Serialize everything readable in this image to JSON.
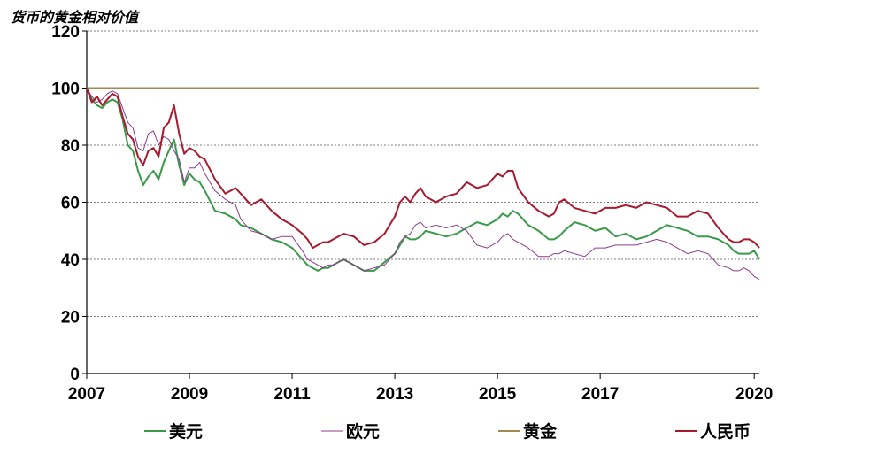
{
  "chart_data": {
    "type": "line",
    "title": "货币的黄金相对价值",
    "xlabel": "",
    "ylabel": "",
    "ylim": [
      0,
      120
    ],
    "xlim": [
      2007,
      2020.1
    ],
    "y_ticks": [
      "0",
      "20",
      "40",
      "60",
      "80",
      "100",
      "120"
    ],
    "x_ticks": [
      "2007",
      "2009",
      "2011",
      "2013",
      "2015",
      "2017",
      "2020"
    ],
    "x_tick_values": [
      2007,
      2009,
      2011,
      2013,
      2015,
      2017,
      2020
    ],
    "grid": "horizontal dashed",
    "legend_position": "bottom",
    "series": [
      {
        "name": "美元",
        "color": "#3a9a4a",
        "x": [
          2007.0,
          2007.1,
          2007.2,
          2007.3,
          2007.4,
          2007.5,
          2007.6,
          2007.7,
          2007.8,
          2007.9,
          2008.0,
          2008.1,
          2008.2,
          2008.3,
          2008.4,
          2008.5,
          2008.6,
          2008.7,
          2008.8,
          2008.9,
          2009.0,
          2009.1,
          2009.2,
          2009.3,
          2009.5,
          2009.7,
          2009.9,
          2010.0,
          2010.2,
          2010.4,
          2010.6,
          2010.8,
          2011.0,
          2011.2,
          2011.3,
          2011.4,
          2011.5,
          2011.6,
          2011.7,
          2011.8,
          2012.0,
          2012.2,
          2012.4,
          2012.6,
          2012.8,
          2013.0,
          2013.1,
          2013.2,
          2013.3,
          2013.4,
          2013.5,
          2013.6,
          2013.8,
          2014.0,
          2014.2,
          2014.4,
          2014.6,
          2014.8,
          2015.0,
          2015.1,
          2015.2,
          2015.3,
          2015.4,
          2015.6,
          2015.8,
          2016.0,
          2016.1,
          2016.2,
          2016.3,
          2016.5,
          2016.7,
          2016.9,
          2017.1,
          2017.3,
          2017.5,
          2017.7,
          2017.9,
          2018.1,
          2018.3,
          2018.5,
          2018.7,
          2018.9,
          2019.1,
          2019.3,
          2019.5,
          2019.6,
          2019.7,
          2019.8,
          2019.9,
          2020.0,
          2020.1
        ],
        "values": [
          100,
          96,
          94,
          93,
          95,
          96,
          95,
          89,
          80,
          78,
          71,
          66,
          69,
          71,
          68,
          74,
          78,
          82,
          73,
          66,
          70,
          68,
          67,
          64,
          57,
          56,
          54,
          52,
          51,
          49,
          47,
          46,
          44,
          40,
          38,
          37,
          36,
          37,
          37,
          38,
          40,
          38,
          36,
          36,
          39,
          42,
          45,
          48,
          47,
          47,
          48,
          50,
          49,
          48,
          49,
          51,
          53,
          52,
          54,
          56,
          55,
          57,
          56,
          52,
          50,
          47,
          47,
          48,
          50,
          53,
          52,
          50,
          51,
          48,
          49,
          47,
          48,
          50,
          52,
          51,
          50,
          48,
          48,
          47,
          45,
          43,
          42,
          42,
          42,
          43,
          40
        ]
      },
      {
        "name": "欧元",
        "color": "#8e3b8e",
        "x": [
          2007.0,
          2007.1,
          2007.2,
          2007.3,
          2007.4,
          2007.5,
          2007.6,
          2007.7,
          2007.8,
          2007.9,
          2008.0,
          2008.1,
          2008.2,
          2008.3,
          2008.4,
          2008.5,
          2008.6,
          2008.7,
          2008.8,
          2008.9,
          2009.0,
          2009.1,
          2009.2,
          2009.3,
          2009.5,
          2009.7,
          2009.9,
          2010.0,
          2010.2,
          2010.4,
          2010.6,
          2010.8,
          2011.0,
          2011.2,
          2011.3,
          2011.4,
          2011.5,
          2011.6,
          2011.7,
          2011.8,
          2012.0,
          2012.2,
          2012.4,
          2012.6,
          2012.8,
          2013.0,
          2013.1,
          2013.2,
          2013.3,
          2013.4,
          2013.5,
          2013.6,
          2013.8,
          2014.0,
          2014.2,
          2014.4,
          2014.6,
          2014.8,
          2015.0,
          2015.1,
          2015.2,
          2015.3,
          2015.4,
          2015.6,
          2015.8,
          2016.0,
          2016.1,
          2016.2,
          2016.3,
          2016.5,
          2016.7,
          2016.9,
          2017.1,
          2017.3,
          2017.5,
          2017.7,
          2017.9,
          2018.1,
          2018.3,
          2018.5,
          2018.7,
          2018.9,
          2019.1,
          2019.3,
          2019.5,
          2019.6,
          2019.7,
          2019.8,
          2019.9,
          2020.0,
          2020.1
        ],
        "values": [
          100,
          97,
          95,
          96,
          98,
          99,
          98,
          93,
          88,
          86,
          79,
          78,
          84,
          85,
          80,
          83,
          82,
          78,
          75,
          67,
          72,
          72,
          74,
          70,
          64,
          61,
          59,
          54,
          50,
          49,
          47,
          48,
          48,
          43,
          40,
          39,
          38,
          37,
          38,
          38,
          40,
          38,
          36,
          37,
          38,
          42,
          46,
          48,
          49,
          52,
          53,
          51,
          52,
          51,
          52,
          50,
          45,
          44,
          46,
          48,
          49,
          47,
          46,
          44,
          41,
          41,
          42,
          42,
          43,
          42,
          41,
          44,
          44,
          45,
          45,
          45,
          46,
          47,
          46,
          44,
          42,
          43,
          42,
          38,
          37,
          36,
          36,
          37,
          36,
          34,
          33
        ]
      },
      {
        "name": "黄金",
        "color": "#a08a50",
        "x": [
          2007.0,
          2020.1
        ],
        "values": [
          100,
          100
        ]
      },
      {
        "name": "人民币",
        "color": "#a8192e",
        "x": [
          2007.0,
          2007.1,
          2007.2,
          2007.3,
          2007.4,
          2007.5,
          2007.6,
          2007.7,
          2007.8,
          2007.9,
          2008.0,
          2008.1,
          2008.2,
          2008.3,
          2008.4,
          2008.5,
          2008.6,
          2008.7,
          2008.8,
          2008.9,
          2009.0,
          2009.1,
          2009.2,
          2009.3,
          2009.5,
          2009.7,
          2009.9,
          2010.0,
          2010.2,
          2010.4,
          2010.6,
          2010.8,
          2011.0,
          2011.2,
          2011.3,
          2011.4,
          2011.5,
          2011.6,
          2011.7,
          2011.8,
          2012.0,
          2012.2,
          2012.4,
          2012.6,
          2012.8,
          2013.0,
          2013.1,
          2013.2,
          2013.3,
          2013.4,
          2013.5,
          2013.6,
          2013.8,
          2014.0,
          2014.2,
          2014.4,
          2014.6,
          2014.8,
          2015.0,
          2015.1,
          2015.2,
          2015.3,
          2015.4,
          2015.6,
          2015.8,
          2016.0,
          2016.1,
          2016.2,
          2016.3,
          2016.5,
          2016.7,
          2016.9,
          2017.1,
          2017.3,
          2017.5,
          2017.7,
          2017.9,
          2018.1,
          2018.3,
          2018.5,
          2018.7,
          2018.9,
          2019.1,
          2019.3,
          2019.5,
          2019.6,
          2019.7,
          2019.8,
          2019.9,
          2020.0,
          2020.1
        ],
        "values": [
          100,
          95,
          97,
          94,
          96,
          98,
          97,
          90,
          84,
          82,
          76,
          73,
          78,
          79,
          76,
          86,
          88,
          94,
          84,
          77,
          79,
          78,
          76,
          75,
          68,
          63,
          65,
          63,
          59,
          61,
          57,
          54,
          52,
          49,
          47,
          44,
          45,
          46,
          46,
          47,
          49,
          48,
          45,
          46,
          49,
          55,
          60,
          62,
          60,
          63,
          65,
          62,
          60,
          62,
          63,
          67,
          65,
          66,
          70,
          69,
          71,
          71,
          65,
          60,
          57,
          55,
          56,
          60,
          61,
          58,
          57,
          56,
          58,
          58,
          59,
          58,
          60,
          59,
          58,
          55,
          55,
          57,
          56,
          51,
          47,
          46,
          46,
          47,
          47,
          46,
          44
        ]
      }
    ]
  }
}
